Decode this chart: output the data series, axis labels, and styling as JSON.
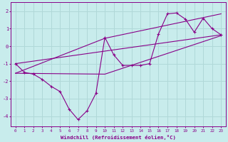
{
  "background_color": "#c8ecec",
  "grid_color": "#b0d8d8",
  "line_color": "#880088",
  "xlabel": "Windchill (Refroidissement éolien,°C)",
  "xlim": [
    -0.5,
    23.5
  ],
  "ylim": [
    -4.6,
    2.5
  ],
  "yticks": [
    -4,
    -3,
    -2,
    -1,
    0,
    1,
    2
  ],
  "xticks": [
    0,
    1,
    2,
    3,
    4,
    5,
    6,
    7,
    8,
    9,
    10,
    11,
    12,
    13,
    14,
    15,
    16,
    17,
    18,
    19,
    20,
    21,
    22,
    23
  ],
  "series1_x": [
    0,
    1,
    2,
    3,
    4,
    5,
    6,
    7,
    8,
    9,
    10,
    11,
    12,
    13,
    14,
    15,
    16,
    17,
    18,
    19,
    20,
    21,
    22,
    23
  ],
  "series1_y": [
    -1.0,
    -1.5,
    -1.6,
    -1.9,
    -2.3,
    -2.6,
    -3.6,
    -4.2,
    -3.7,
    -2.7,
    0.5,
    -0.5,
    -1.1,
    -1.1,
    -1.1,
    -1.0,
    0.7,
    1.85,
    1.9,
    1.55,
    0.8,
    1.6,
    1.0,
    0.65
  ],
  "trend1_x": [
    0,
    23
  ],
  "trend1_y": [
    -1.0,
    0.65
  ],
  "trend2_x": [
    0,
    10,
    23
  ],
  "trend2_y": [
    -1.55,
    -1.6,
    0.6
  ],
  "trend3_x": [
    0,
    10,
    23
  ],
  "trend3_y": [
    -1.55,
    0.45,
    1.85
  ]
}
